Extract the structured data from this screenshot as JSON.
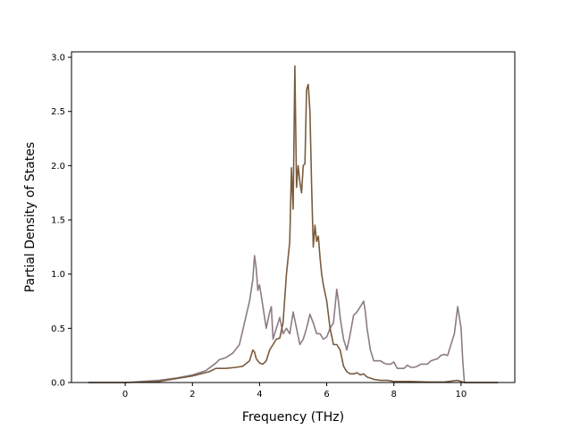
{
  "chart_data": {
    "type": "line",
    "title": "",
    "xlabel": "Frequency (THz)",
    "ylabel": "Partial Density of States",
    "xlim": [
      -1.6,
      11.6
    ],
    "ylim": [
      0.0,
      3.05
    ],
    "xticks": [
      0,
      2,
      4,
      6,
      8,
      10
    ],
    "xtick_labels": [
      "0",
      "2",
      "4",
      "6",
      "8",
      "10"
    ],
    "yticks": [
      0.0,
      0.5,
      1.0,
      1.5,
      2.0,
      2.5,
      3.0
    ],
    "ytick_labels": [
      "0.0",
      "0.5",
      "1.0",
      "1.5",
      "2.0",
      "2.5",
      "3.0"
    ],
    "grid": false,
    "legend": "none",
    "series": [
      {
        "color": "#8c7b86",
        "x": [
          -1.1,
          0.0,
          0.5,
          1.0,
          1.5,
          2.0,
          2.4,
          2.7,
          2.8,
          3.0,
          3.2,
          3.4,
          3.55,
          3.7,
          3.8,
          3.85,
          3.9,
          3.95,
          4.0,
          4.05,
          4.1,
          4.2,
          4.3,
          4.35,
          4.4,
          4.5,
          4.6,
          4.7,
          4.8,
          4.9,
          5.0,
          5.1,
          5.2,
          5.3,
          5.4,
          5.5,
          5.6,
          5.7,
          5.8,
          5.9,
          6.0,
          6.1,
          6.2,
          6.3,
          6.35,
          6.4,
          6.5,
          6.6,
          6.7,
          6.8,
          6.9,
          7.0,
          7.1,
          7.15,
          7.2,
          7.3,
          7.4,
          7.5,
          7.6,
          7.7,
          7.8,
          7.9,
          8.0,
          8.1,
          8.2,
          8.3,
          8.4,
          8.5,
          8.6,
          8.7,
          8.8,
          8.9,
          9.0,
          9.1,
          9.2,
          9.3,
          9.4,
          9.5,
          9.6,
          9.7,
          9.8,
          9.9,
          9.95,
          10.0,
          10.05,
          10.1,
          10.2,
          11.1
        ],
        "y": [
          0.0,
          0.0,
          0.01,
          0.02,
          0.04,
          0.07,
          0.11,
          0.18,
          0.21,
          0.23,
          0.27,
          0.35,
          0.55,
          0.75,
          0.95,
          1.17,
          1.05,
          0.85,
          0.9,
          0.8,
          0.7,
          0.5,
          0.65,
          0.7,
          0.4,
          0.5,
          0.6,
          0.45,
          0.5,
          0.45,
          0.65,
          0.5,
          0.35,
          0.4,
          0.5,
          0.63,
          0.55,
          0.45,
          0.45,
          0.4,
          0.42,
          0.5,
          0.55,
          0.86,
          0.75,
          0.6,
          0.4,
          0.3,
          0.45,
          0.62,
          0.65,
          0.7,
          0.75,
          0.65,
          0.5,
          0.3,
          0.2,
          0.2,
          0.2,
          0.18,
          0.17,
          0.17,
          0.19,
          0.13,
          0.13,
          0.13,
          0.16,
          0.14,
          0.14,
          0.15,
          0.17,
          0.17,
          0.17,
          0.2,
          0.21,
          0.22,
          0.25,
          0.26,
          0.25,
          0.35,
          0.45,
          0.7,
          0.6,
          0.5,
          0.2,
          0.0,
          0.0,
          0.0
        ]
      },
      {
        "color": "#7a5c3e",
        "x": [
          -1.1,
          0.0,
          1.0,
          2.0,
          2.5,
          2.7,
          3.0,
          3.3,
          3.5,
          3.7,
          3.8,
          3.85,
          3.9,
          4.0,
          4.1,
          4.2,
          4.3,
          4.4,
          4.5,
          4.6,
          4.7,
          4.8,
          4.9,
          4.95,
          5.0,
          5.05,
          5.1,
          5.15,
          5.2,
          5.25,
          5.3,
          5.35,
          5.4,
          5.45,
          5.5,
          5.55,
          5.6,
          5.65,
          5.7,
          5.75,
          5.8,
          5.85,
          5.9,
          6.0,
          6.1,
          6.2,
          6.3,
          6.4,
          6.5,
          6.6,
          6.7,
          6.8,
          6.9,
          7.0,
          7.1,
          7.2,
          7.4,
          7.6,
          7.8,
          8.0,
          8.5,
          9.0,
          9.5,
          9.9,
          10.0,
          10.1,
          11.1
        ],
        "y": [
          0.0,
          0.0,
          0.01,
          0.06,
          0.1,
          0.13,
          0.13,
          0.14,
          0.15,
          0.2,
          0.3,
          0.28,
          0.22,
          0.18,
          0.17,
          0.2,
          0.3,
          0.35,
          0.4,
          0.41,
          0.55,
          1.0,
          1.3,
          1.98,
          1.6,
          2.92,
          1.8,
          2.0,
          1.85,
          1.75,
          2.0,
          2.02,
          2.7,
          2.75,
          2.5,
          1.8,
          1.25,
          1.45,
          1.3,
          1.35,
          1.15,
          1.0,
          0.9,
          0.75,
          0.5,
          0.35,
          0.35,
          0.3,
          0.15,
          0.1,
          0.08,
          0.08,
          0.09,
          0.07,
          0.08,
          0.05,
          0.03,
          0.02,
          0.02,
          0.01,
          0.01,
          0.005,
          0.005,
          0.02,
          0.01,
          0.0,
          0.0
        ]
      }
    ]
  }
}
